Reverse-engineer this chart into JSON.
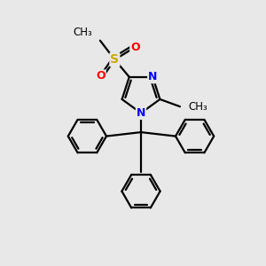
{
  "bg_color": "#e8e8e8",
  "bond_color": "#000000",
  "n_color": "#0000ff",
  "s_color": "#ccaa00",
  "o_color": "#ff0000",
  "line_width": 1.6,
  "figsize": [
    3.0,
    3.0
  ],
  "dpi": 100,
  "xlim": [
    0,
    10
  ],
  "ylim": [
    0,
    10
  ]
}
